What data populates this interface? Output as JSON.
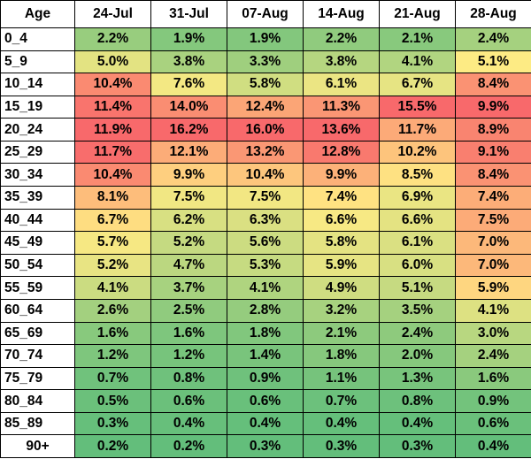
{
  "chart_data": {
    "type": "heatmap",
    "corner_label": "Age",
    "x": [
      "24-Jul",
      "31-Jul",
      "07-Aug",
      "14-Aug",
      "21-Aug",
      "28-Aug"
    ],
    "y": [
      "0_4",
      "5_9",
      "10_14",
      "15_19",
      "20_24",
      "25_29",
      "30_34",
      "35_39",
      "40_44",
      "45_49",
      "50_54",
      "55_59",
      "60_64",
      "65_69",
      "70_74",
      "75_79",
      "80_84",
      "85_89",
      "90+"
    ],
    "values": [
      [
        2.2,
        1.9,
        1.9,
        2.2,
        2.1,
        2.4
      ],
      [
        5.0,
        3.8,
        3.3,
        3.8,
        4.1,
        5.1
      ],
      [
        10.4,
        7.6,
        5.8,
        6.1,
        6.7,
        8.4
      ],
      [
        11.4,
        14.0,
        12.4,
        11.3,
        15.5,
        9.9
      ],
      [
        11.9,
        16.2,
        16.0,
        13.6,
        11.7,
        8.9
      ],
      [
        11.7,
        12.1,
        13.2,
        12.8,
        10.2,
        9.1
      ],
      [
        10.4,
        9.9,
        10.4,
        9.9,
        8.5,
        8.4
      ],
      [
        8.1,
        7.5,
        7.5,
        7.4,
        6.9,
        7.4
      ],
      [
        6.7,
        6.2,
        6.3,
        6.6,
        6.6,
        7.5
      ],
      [
        5.7,
        5.2,
        5.6,
        5.8,
        6.1,
        7.0
      ],
      [
        5.2,
        4.7,
        5.3,
        5.9,
        6.0,
        7.0
      ],
      [
        4.1,
        3.7,
        4.1,
        4.9,
        5.1,
        5.9
      ],
      [
        2.6,
        2.5,
        2.8,
        3.2,
        3.5,
        4.1
      ],
      [
        1.6,
        1.6,
        1.8,
        2.1,
        2.4,
        3.0
      ],
      [
        1.2,
        1.2,
        1.4,
        1.8,
        2.0,
        2.4
      ],
      [
        0.7,
        0.8,
        0.9,
        1.1,
        1.3,
        1.6
      ],
      [
        0.5,
        0.6,
        0.6,
        0.7,
        0.8,
        0.9
      ],
      [
        0.3,
        0.4,
        0.4,
        0.4,
        0.4,
        0.6
      ],
      [
        0.2,
        0.2,
        0.3,
        0.3,
        0.3,
        0.4
      ]
    ],
    "value_suffix": "%",
    "color_scale": {
      "low": "#63be7b",
      "mid": "#ffeb84",
      "high": "#f8696b",
      "scope": "per column"
    },
    "grid": true
  }
}
